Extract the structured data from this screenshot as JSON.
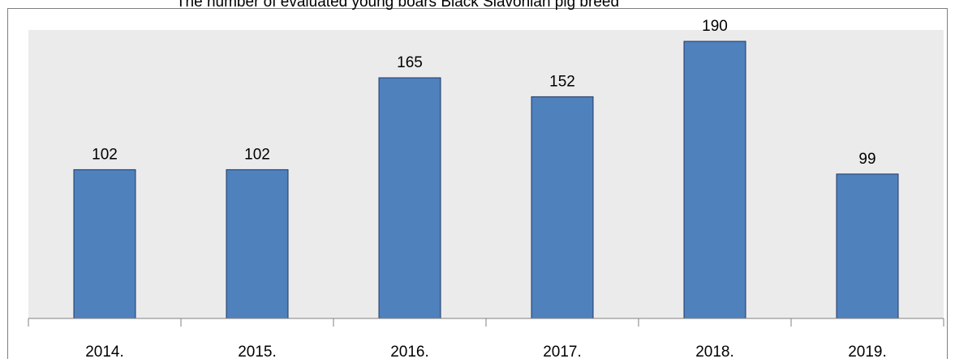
{
  "chart_data": {
    "type": "bar",
    "title": "The number of evaluated young boars Black Slavonian pig breed",
    "categories": [
      "2014.",
      "2015.",
      "2016.",
      "2017.",
      "2018.",
      "2019."
    ],
    "values": [
      102,
      102,
      165,
      152,
      190,
      99
    ],
    "value_labels": [
      "102",
      "102",
      "165",
      "152",
      "190",
      "99"
    ],
    "xlabel": "",
    "ylabel": "",
    "ylim": [
      0,
      200
    ],
    "grid": false,
    "legend": "none",
    "colors": {
      "bar_fill": "#4f81bd",
      "bar_stroke": "#1f3864",
      "plot_background": "#ebebeb",
      "axis": "#808080",
      "text": "#000000"
    }
  }
}
